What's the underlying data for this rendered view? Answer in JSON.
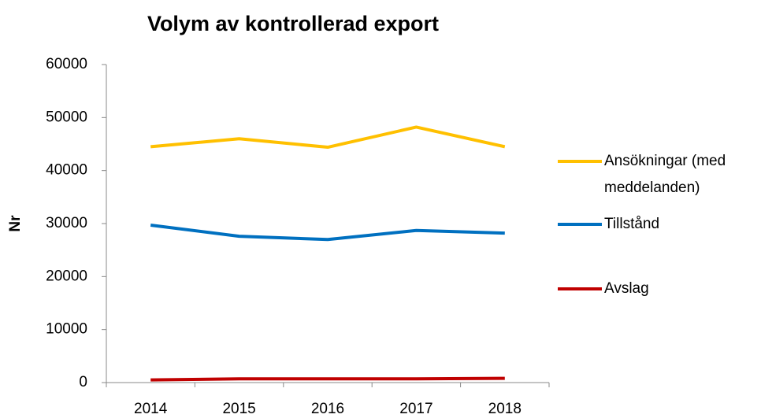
{
  "chart_data": {
    "type": "line",
    "title": "Volym av kontrollerad export",
    "y_label": "Nr",
    "categories": [
      "2014",
      "2015",
      "2016",
      "2017",
      "2018"
    ],
    "series": [
      {
        "name": "Ansökningar (med meddelanden)",
        "color": "#ffc000",
        "values": [
          44500,
          46000,
          44400,
          48200,
          44500
        ]
      },
      {
        "name": "Tillstånd",
        "color": "#0070c0",
        "values": [
          29700,
          27600,
          27000,
          28700,
          28200
        ]
      },
      {
        "name": "Avslag",
        "color": "#c00000",
        "values": [
          500,
          700,
          700,
          700,
          800
        ]
      }
    ],
    "ylim": [
      0,
      60000
    ],
    "yticks": [
      0,
      10000,
      20000,
      30000,
      40000,
      50000,
      60000
    ],
    "grid": false,
    "legend": "right"
  }
}
